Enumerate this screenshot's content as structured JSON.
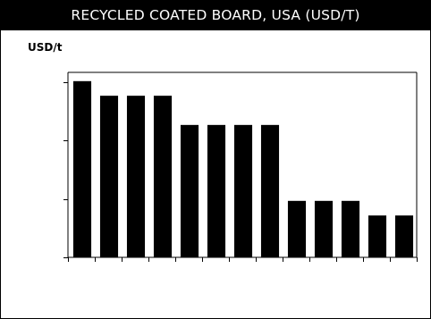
{
  "chart_data": {
    "type": "bar",
    "title": "RECYCLED COATED BOARD, USA (USD/T)",
    "unit_label": "USD/t",
    "values": [
      905,
      830,
      830,
      830,
      680,
      680,
      680,
      680,
      290,
      290,
      290,
      215,
      215
    ],
    "ylim": [
      0,
      950
    ],
    "y_tick_values": [
      0,
      300,
      600,
      900
    ],
    "bar_color": "#000000",
    "grid": false,
    "legend": "none"
  }
}
